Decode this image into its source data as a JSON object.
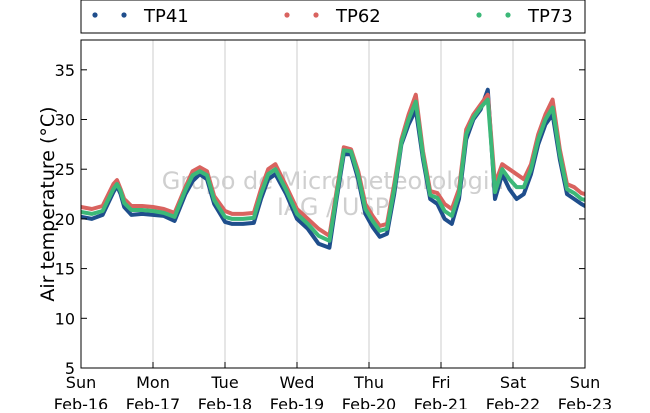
{
  "chart_data": {
    "type": "line",
    "title": "",
    "xlabel": "",
    "ylabel": "Air temperature (°C)",
    "ylim": [
      5,
      38
    ],
    "xlim": [
      0,
      7
    ],
    "yticks": [
      5,
      10,
      15,
      20,
      25,
      30,
      35
    ],
    "xticks": [
      {
        "pos": 0,
        "day": "Sun",
        "date": "Feb-16"
      },
      {
        "pos": 1,
        "day": "Mon",
        "date": "Feb-17"
      },
      {
        "pos": 2,
        "day": "Tue",
        "date": "Feb-18"
      },
      {
        "pos": 3,
        "day": "Wed",
        "date": "Feb-19"
      },
      {
        "pos": 4,
        "day": "Thu",
        "date": "Feb-20"
      },
      {
        "pos": 5,
        "day": "Fri",
        "date": "Feb-21"
      },
      {
        "pos": 6,
        "day": "Sat",
        "date": "Feb-22"
      },
      {
        "pos": 7,
        "day": "Sun",
        "date": "Feb-23"
      }
    ],
    "grid": "vertical",
    "legend_position": "top",
    "watermark": [
      "Grupo de Micrometeorologia",
      "IAG / USP"
    ],
    "series": [
      {
        "name": "TP41",
        "color": "#1f4e8c",
        "x": [
          0,
          0.15,
          0.3,
          0.45,
          0.5,
          0.55,
          0.6,
          0.7,
          0.85,
          1.0,
          1.15,
          1.3,
          1.45,
          1.55,
          1.65,
          1.75,
          1.85,
          2.0,
          2.1,
          2.25,
          2.4,
          2.5,
          2.6,
          2.7,
          2.85,
          3.0,
          3.15,
          3.3,
          3.45,
          3.55,
          3.65,
          3.75,
          3.85,
          3.95,
          4.05,
          4.15,
          4.25,
          4.35,
          4.45,
          4.55,
          4.65,
          4.75,
          4.85,
          4.95,
          5.05,
          5.15,
          5.25,
          5.35,
          5.45,
          5.55,
          5.65,
          5.75,
          5.85,
          5.95,
          6.05,
          6.15,
          6.25,
          6.35,
          6.45,
          6.55,
          6.65,
          6.75,
          6.85,
          6.95,
          7.0
        ],
        "values": [
          20.2,
          20.0,
          20.4,
          22.7,
          23.3,
          22.5,
          21.2,
          20.4,
          20.5,
          20.4,
          20.3,
          19.8,
          22.5,
          23.8,
          24.5,
          24.0,
          21.5,
          19.7,
          19.5,
          19.5,
          19.6,
          22.0,
          24.0,
          24.5,
          22.5,
          20.0,
          19.0,
          17.5,
          17.1,
          22.0,
          26.5,
          26.5,
          24.0,
          20.5,
          19.2,
          18.2,
          18.5,
          22.5,
          27.5,
          29.5,
          31.0,
          26.0,
          22.0,
          21.5,
          20.0,
          19.5,
          22.0,
          28.0,
          30.0,
          31.0,
          33.0,
          22.0,
          24.5,
          23.0,
          22.0,
          22.5,
          24.5,
          27.5,
          29.5,
          30.5,
          26.0,
          22.5,
          22.0,
          21.5,
          21.3
        ]
      },
      {
        "name": "TP62",
        "color": "#d9635f",
        "x": [
          0,
          0.15,
          0.3,
          0.45,
          0.5,
          0.55,
          0.6,
          0.7,
          0.85,
          1.0,
          1.15,
          1.3,
          1.45,
          1.55,
          1.65,
          1.75,
          1.85,
          2.0,
          2.1,
          2.25,
          2.4,
          2.5,
          2.6,
          2.7,
          2.85,
          3.0,
          3.15,
          3.3,
          3.45,
          3.55,
          3.65,
          3.75,
          3.85,
          3.95,
          4.05,
          4.15,
          4.25,
          4.35,
          4.45,
          4.55,
          4.65,
          4.75,
          4.85,
          4.95,
          5.05,
          5.15,
          5.25,
          5.35,
          5.45,
          5.55,
          5.65,
          5.75,
          5.85,
          5.95,
          6.05,
          6.15,
          6.25,
          6.35,
          6.45,
          6.55,
          6.65,
          6.75,
          6.85,
          6.95,
          7.0
        ],
        "values": [
          21.2,
          21.0,
          21.3,
          23.5,
          23.9,
          23.0,
          22.0,
          21.3,
          21.3,
          21.2,
          21.0,
          20.6,
          23.2,
          24.8,
          25.2,
          24.8,
          22.3,
          20.8,
          20.5,
          20.5,
          20.6,
          23.0,
          25.0,
          25.5,
          23.3,
          21.0,
          20.0,
          19.0,
          18.3,
          22.8,
          27.2,
          27.0,
          24.8,
          21.5,
          20.3,
          19.3,
          19.5,
          23.5,
          28.0,
          30.5,
          32.5,
          26.8,
          22.8,
          22.6,
          21.5,
          21.0,
          23.0,
          29.0,
          30.5,
          31.5,
          32.5,
          23.5,
          25.5,
          25.0,
          24.5,
          24.0,
          25.5,
          28.5,
          30.5,
          32.0,
          27.0,
          23.5,
          23.2,
          22.6,
          22.5
        ]
      },
      {
        "name": "TP73",
        "color": "#3cb878",
        "x": [
          0,
          0.15,
          0.3,
          0.45,
          0.5,
          0.55,
          0.6,
          0.7,
          0.85,
          1.0,
          1.15,
          1.3,
          1.45,
          1.55,
          1.65,
          1.75,
          1.85,
          2.0,
          2.1,
          2.25,
          2.4,
          2.5,
          2.6,
          2.7,
          2.85,
          3.0,
          3.15,
          3.3,
          3.45,
          3.55,
          3.65,
          3.75,
          3.85,
          3.95,
          4.05,
          4.15,
          4.25,
          4.35,
          4.45,
          4.55,
          4.65,
          4.75,
          4.85,
          4.95,
          5.05,
          5.15,
          5.25,
          5.35,
          5.45,
          5.55,
          5.65,
          5.75,
          5.85,
          5.95,
          6.05,
          6.15,
          6.25,
          6.35,
          6.45,
          6.55,
          6.65,
          6.75,
          6.85,
          6.95,
          7.0
        ],
        "values": [
          20.7,
          20.5,
          20.8,
          23.0,
          23.5,
          22.8,
          21.6,
          20.9,
          20.9,
          20.8,
          20.6,
          20.2,
          22.9,
          24.4,
          24.8,
          24.4,
          21.9,
          20.2,
          20.0,
          20.0,
          20.1,
          22.5,
          24.5,
          25.0,
          22.9,
          20.5,
          19.5,
          18.3,
          17.8,
          22.4,
          26.9,
          26.8,
          24.4,
          21.0,
          19.8,
          18.8,
          19.0,
          23.0,
          27.7,
          30.0,
          31.8,
          26.4,
          22.4,
          22.1,
          20.8,
          20.3,
          22.5,
          28.5,
          30.2,
          31.2,
          32.0,
          22.7,
          25.0,
          24.0,
          23.2,
          23.2,
          25.0,
          28.0,
          30.0,
          31.2,
          26.5,
          23.0,
          22.6,
          22.0,
          21.9
        ]
      }
    ]
  }
}
